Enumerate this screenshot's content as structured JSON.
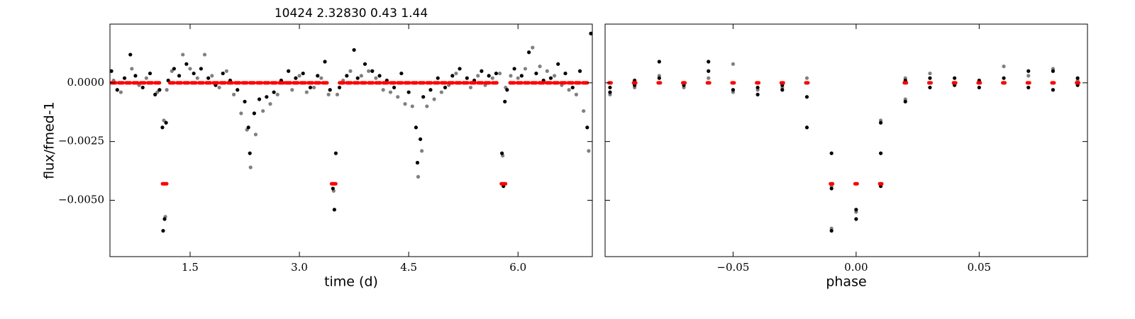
{
  "chart_data": [
    {
      "type": "scatter",
      "title": "10424 2.32830 0.43 1.44",
      "xlabel": "time (d)",
      "ylabel": "flux/fmed-1",
      "xlim": [
        0.4,
        7.02
      ],
      "ylim": [
        -0.0074,
        0.0025
      ],
      "xticks": [
        1.5,
        {
          "value": 3,
          "label": "3.0"
        },
        4.5,
        {
          "value": 6,
          "label": "6.0"
        }
      ],
      "yticks": [
        {
          "value": -0.005,
          "label": "−0.0050"
        },
        {
          "value": -0.0025,
          "label": "−0.0025"
        },
        {
          "value": 0,
          "label": "0.0000"
        }
      ],
      "series": [
        {
          "color": "#808080",
          "marker": "dot",
          "x": [
            0.45,
            0.55,
            0.7,
            0.8,
            0.9,
            1.05,
            1.14,
            1.16,
            1.18,
            1.25,
            1.4,
            1.5,
            1.6,
            1.7,
            1.8,
            1.9,
            2.0,
            2.1,
            2.2,
            2.28,
            2.33,
            2.4,
            2.5,
            2.6,
            2.7,
            2.8,
            2.9,
            3.0,
            3.1,
            3.2,
            3.3,
            3.4,
            3.47,
            3.52,
            3.6,
            3.7,
            3.85,
            3.95,
            4.05,
            4.15,
            4.25,
            4.35,
            4.45,
            4.55,
            4.63,
            4.68,
            4.75,
            4.85,
            4.95,
            5.05,
            5.15,
            5.25,
            5.35,
            5.45,
            5.55,
            5.65,
            5.75,
            5.79,
            5.83,
            5.9,
            6.0,
            6.1,
            6.2,
            6.3,
            6.4,
            6.5,
            6.6,
            6.7,
            6.8,
            6.9,
            6.97
          ],
          "values": [
            0.0001,
            -0.0004,
            0.0006,
            -0.0001,
            0.0002,
            -0.0004,
            -0.0016,
            -0.0057,
            -0.0003,
            0.0005,
            0.0012,
            0.0006,
            0.0002,
            0.0012,
            0.0003,
            -0.0002,
            0.0005,
            -0.0005,
            -0.0013,
            -0.002,
            -0.0036,
            -0.0022,
            -0.0012,
            -0.0009,
            -0.0005,
            0.0,
            -0.0003,
            0.0003,
            -0.0004,
            -0.0002,
            0.0002,
            -0.0005,
            -0.0046,
            -0.0005,
            0.0001,
            0.0005,
            0.0003,
            0.0005,
            0.0002,
            -0.0003,
            -0.0004,
            -0.0006,
            -0.0009,
            -0.001,
            -0.004,
            -0.0029,
            -0.001,
            -0.0007,
            -0.0004,
            -0.0001,
            0.0004,
            0.0,
            -0.0002,
            0.0003,
            -0.0001,
            0.0002,
            0.0004,
            -0.0031,
            -0.0002,
            0.0003,
            0.0002,
            0.0006,
            0.0015,
            0.0007,
            0.0005,
            0.0003,
            -0.0001,
            -0.0003,
            -0.0005,
            -0.0012,
            -0.0029
          ]
        },
        {
          "color": "#000000",
          "marker": "dot",
          "x": [
            0.42,
            0.5,
            0.6,
            0.68,
            0.75,
            0.85,
            0.95,
            1.02,
            1.08,
            1.12,
            1.13,
            1.15,
            1.17,
            1.2,
            1.28,
            1.35,
            1.45,
            1.55,
            1.65,
            1.75,
            1.85,
            1.95,
            2.05,
            2.15,
            2.25,
            2.3,
            2.32,
            2.38,
            2.45,
            2.55,
            2.65,
            2.75,
            2.85,
            2.95,
            3.05,
            3.15,
            3.25,
            3.35,
            3.42,
            3.46,
            3.48,
            3.5,
            3.55,
            3.65,
            3.75,
            3.8,
            3.9,
            4.0,
            4.1,
            4.2,
            4.3,
            4.4,
            4.5,
            4.6,
            4.62,
            4.66,
            4.7,
            4.8,
            4.9,
            5.0,
            5.1,
            5.2,
            5.3,
            5.4,
            5.5,
            5.6,
            5.7,
            5.78,
            5.8,
            5.82,
            5.85,
            5.95,
            6.05,
            6.15,
            6.25,
            6.35,
            6.45,
            6.55,
            6.65,
            6.75,
            6.85,
            6.95,
            7.0
          ],
          "values": [
            0.0005,
            -0.0003,
            0.0002,
            0.0012,
            0.0003,
            -0.0002,
            0.0004,
            -0.0005,
            -0.0003,
            -0.0019,
            -0.0063,
            -0.0058,
            -0.0017,
            0.0001,
            0.0006,
            0.0003,
            0.0008,
            0.0004,
            0.0006,
            0.0002,
            -0.0001,
            0.0004,
            0.0001,
            -0.0003,
            -0.0008,
            -0.0019,
            -0.003,
            -0.0013,
            -0.0007,
            -0.0006,
            -0.0004,
            0.0001,
            0.0005,
            0.0002,
            0.0004,
            -0.0002,
            0.0003,
            0.0009,
            -0.0003,
            -0.0045,
            -0.0054,
            -0.003,
            -0.0002,
            0.0003,
            0.0014,
            0.0002,
            0.0008,
            0.0005,
            0.0003,
            0.0001,
            -0.0002,
            0.0004,
            -0.0004,
            -0.0019,
            -0.0034,
            -0.0024,
            -0.0006,
            -0.0003,
            0.0002,
            -0.0002,
            0.0003,
            0.0006,
            0.0002,
            0.0001,
            0.0005,
            0.0003,
            0.0004,
            -0.003,
            -0.0044,
            -0.0008,
            -0.0003,
            0.0006,
            0.0003,
            0.0013,
            0.0004,
            0.0001,
            0.0002,
            0.0008,
            0.0004,
            -0.0002,
            0.0005,
            -0.0019,
            0.0021
          ]
        },
        {
          "color": "#ff0000",
          "marker": "dash",
          "x": [
            0.45,
            0.55,
            0.65,
            0.75,
            0.85,
            0.95,
            1.05,
            1.15,
            1.25,
            1.35,
            1.45,
            1.55,
            1.65,
            1.75,
            1.85,
            1.95,
            2.05,
            2.15,
            2.25,
            2.35,
            2.45,
            2.55,
            2.65,
            2.75,
            2.85,
            2.95,
            3.05,
            3.15,
            3.25,
            3.35,
            3.47,
            3.58,
            3.68,
            3.78,
            3.88,
            3.98,
            4.08,
            4.18,
            4.28,
            4.38,
            4.48,
            4.58,
            4.68,
            4.78,
            4.88,
            4.98,
            5.08,
            5.18,
            5.28,
            5.38,
            5.48,
            5.58,
            5.68,
            5.8,
            5.92,
            6.02,
            6.12,
            6.22,
            6.32,
            6.42,
            6.52,
            6.62,
            6.72,
            6.82,
            6.92
          ],
          "values": [
            0,
            0,
            0,
            0,
            0,
            0,
            0,
            -0.0043,
            0,
            0,
            0,
            0,
            0,
            0,
            0,
            0,
            0,
            0,
            0,
            0,
            0,
            0,
            0,
            0,
            0,
            0,
            0,
            0,
            0,
            0,
            -0.0043,
            0,
            0,
            0,
            0,
            0,
            0,
            0,
            0,
            0,
            0,
            0,
            0,
            0,
            0,
            0,
            0,
            0,
            0,
            0,
            0,
            0,
            0,
            -0.0043,
            0,
            0,
            0,
            0,
            0,
            0,
            0,
            0,
            0,
            0,
            0
          ]
        }
      ]
    },
    {
      "type": "scatter",
      "xlabel": "phase",
      "xlim": [
        -0.102,
        0.094
      ],
      "ylim": [
        -0.0074,
        0.0025
      ],
      "xticks": [
        {
          "value": -0.05,
          "label": "−0.05"
        },
        {
          "value": 0,
          "label": "0.00"
        },
        {
          "value": 0.05,
          "label": "0.05"
        }
      ],
      "yticks": [
        -0.005,
        -0.0025,
        0
      ],
      "series": [
        {
          "color": "#808080",
          "marker": "dot",
          "x": [
            -0.1,
            -0.09,
            -0.08,
            -0.07,
            -0.06,
            -0.05,
            -0.05,
            -0.04,
            -0.03,
            -0.02,
            -0.01,
            -0.01,
            0,
            0.01,
            0.01,
            0.02,
            0.02,
            0.03,
            0.04,
            0.05,
            0.06,
            0.07,
            0.08,
            0.09
          ],
          "values": [
            -0.0005,
            -0.0002,
            0.0003,
            -0.0002,
            0.0002,
            0.0008,
            -0.0004,
            -0.0003,
            -0.0002,
            0.0002,
            -0.0062,
            -0.0044,
            -0.0055,
            -0.0016,
            -0.0043,
            -0.0007,
            0.0002,
            0.0004,
            0.0,
            0.0,
            0.0007,
            0.0003,
            0.0006,
            0.0001
          ]
        },
        {
          "color": "#000000",
          "marker": "dot",
          "x": [
            -0.1,
            -0.1,
            -0.09,
            -0.09,
            -0.08,
            -0.08,
            -0.07,
            -0.07,
            -0.06,
            -0.06,
            -0.05,
            -0.04,
            -0.04,
            -0.03,
            -0.03,
            -0.02,
            -0.02,
            -0.01,
            -0.01,
            -0.01,
            0,
            0,
            0.01,
            0.01,
            0.01,
            0.02,
            0.02,
            0.03,
            0.03,
            0.04,
            0.04,
            0.05,
            0.05,
            0.06,
            0.06,
            0.07,
            0.07,
            0.08,
            0.08,
            0.09,
            0.09
          ],
          "values": [
            -0.0002,
            -0.0004,
            0.0001,
            -0.0001,
            0.0009,
            0.0002,
            0.0,
            -0.0001,
            0.0009,
            0.0005,
            -0.0003,
            -0.0005,
            -0.0002,
            -0.0003,
            -0.0001,
            -0.0006,
            -0.0019,
            -0.003,
            -0.0045,
            -0.0063,
            -0.0054,
            -0.0058,
            -0.0017,
            -0.003,
            -0.0044,
            0.0001,
            -0.0008,
            0.0002,
            -0.0002,
            0.0002,
            -0.0001,
            -0.0002,
            0.0001,
            0.0002,
            0.0,
            0.0005,
            -0.0002,
            0.0005,
            -0.0003,
            0.0002,
            -0.0001
          ]
        },
        {
          "color": "#ff0000",
          "marker": "dash",
          "x": [
            -0.1,
            -0.09,
            -0.08,
            -0.07,
            -0.06,
            -0.05,
            -0.04,
            -0.03,
            -0.02,
            -0.01,
            0,
            0.01,
            0.02,
            0.03,
            0.04,
            0.05,
            0.06,
            0.07,
            0.08,
            0.09
          ],
          "values": [
            0,
            0,
            0,
            0,
            0,
            0,
            0,
            0,
            0,
            -0.0043,
            -0.0043,
            -0.0043,
            0,
            0,
            0,
            0,
            0,
            0,
            0,
            0
          ]
        }
      ]
    }
  ]
}
